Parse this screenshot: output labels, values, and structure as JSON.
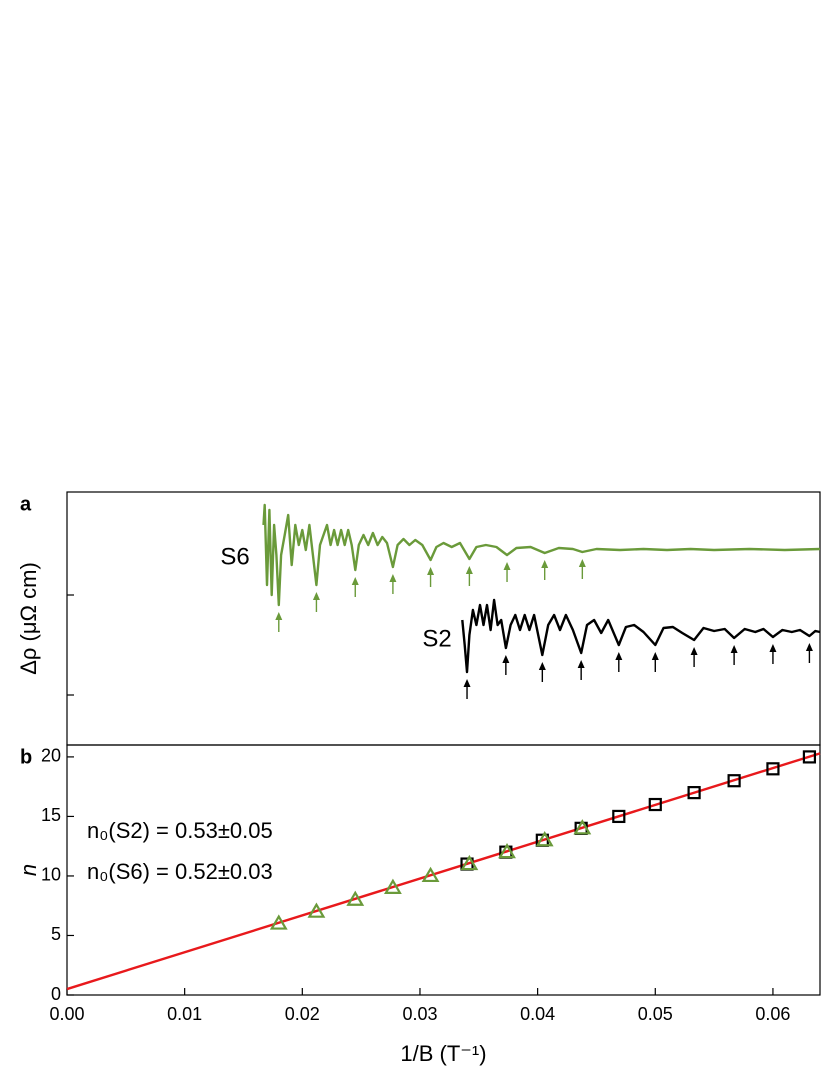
{
  "chart_data": [
    {
      "type": "line",
      "label": "a",
      "ylabel": "Δρ (μΩ cm)",
      "xlim": [
        0,
        0.064
      ],
      "ylim": [
        0,
        2.53
      ],
      "yticks": [
        0.5,
        1.5
      ],
      "tick_labels": false,
      "series": [
        {
          "name": "S6",
          "color": "#6a9a3a",
          "x": [
            0.0167,
            0.0168,
            0.017,
            0.0172,
            0.0174,
            0.0176,
            0.0178,
            0.018,
            0.0182,
            0.0185,
            0.0188,
            0.0191,
            0.0194,
            0.0197,
            0.02,
            0.0203,
            0.0206,
            0.0209,
            0.0212,
            0.0215,
            0.0218,
            0.0221,
            0.0224,
            0.0227,
            0.023,
            0.0233,
            0.0236,
            0.0239,
            0.0242,
            0.0245,
            0.0248,
            0.0252,
            0.0256,
            0.026,
            0.0264,
            0.0268,
            0.0272,
            0.0277,
            0.0281,
            0.0286,
            0.0291,
            0.0296,
            0.0302,
            0.0309,
            0.0314,
            0.032,
            0.0327,
            0.0334,
            0.0342,
            0.0348,
            0.0356,
            0.0365,
            0.0374,
            0.0382,
            0.0394,
            0.0406,
            0.0418,
            0.043,
            0.0438,
            0.045,
            0.047,
            0.049,
            0.051,
            0.053,
            0.055,
            0.058,
            0.061,
            0.064
          ],
          "values": [
            2.2,
            2.4,
            1.6,
            2.35,
            1.5,
            2.2,
            1.9,
            1.4,
            1.9,
            2.1,
            2.3,
            1.8,
            2.2,
            2.0,
            2.15,
            1.95,
            2.2,
            1.9,
            1.6,
            2.0,
            2.1,
            2.2,
            2.0,
            2.15,
            2.0,
            2.15,
            2.0,
            2.15,
            2.0,
            1.75,
            2.0,
            2.1,
            2.0,
            2.12,
            2.0,
            2.08,
            2.02,
            1.78,
            2.0,
            2.06,
            2.0,
            2.05,
            2.0,
            1.85,
            1.98,
            2.02,
            1.98,
            2.02,
            1.86,
            1.98,
            2.0,
            1.98,
            1.9,
            1.97,
            1.98,
            1.92,
            1.97,
            1.96,
            1.93,
            1.96,
            1.95,
            1.96,
            1.95,
            1.96,
            1.95,
            1.96,
            1.95,
            1.96
          ]
        },
        {
          "name": "S2",
          "color": "#000000",
          "x": [
            0.0336,
            0.0338,
            0.034,
            0.0342,
            0.0345,
            0.0348,
            0.0351,
            0.0354,
            0.0357,
            0.036,
            0.0363,
            0.0366,
            0.0369,
            0.0373,
            0.0377,
            0.0381,
            0.0385,
            0.0389,
            0.0393,
            0.0397,
            0.0404,
            0.0409,
            0.0414,
            0.0419,
            0.0424,
            0.043,
            0.0437,
            0.0442,
            0.0448,
            0.0454,
            0.046,
            0.0469,
            0.0475,
            0.0482,
            0.049,
            0.05,
            0.0507,
            0.0515,
            0.0523,
            0.0533,
            0.0541,
            0.055,
            0.0559,
            0.0567,
            0.0576,
            0.0585,
            0.0592,
            0.06,
            0.0608,
            0.0616,
            0.0623,
            0.0631,
            0.0636,
            0.064
          ],
          "values": [
            1.25,
            1.0,
            0.73,
            1.1,
            1.35,
            1.2,
            1.4,
            1.2,
            1.4,
            1.15,
            1.45,
            1.2,
            1.25,
            0.97,
            1.2,
            1.3,
            1.15,
            1.3,
            1.15,
            1.3,
            0.9,
            1.2,
            1.3,
            1.15,
            1.3,
            1.15,
            0.92,
            1.2,
            1.25,
            1.12,
            1.25,
            1.0,
            1.18,
            1.2,
            1.13,
            1.0,
            1.17,
            1.18,
            1.12,
            1.05,
            1.17,
            1.14,
            1.16,
            1.07,
            1.16,
            1.13,
            1.16,
            1.08,
            1.15,
            1.13,
            1.15,
            1.09,
            1.14,
            1.13
          ]
        }
      ]
    },
    {
      "type": "scatter",
      "label": "b",
      "ylabel": "n",
      "xlabel": "1/B (T⁻¹)",
      "xlim": [
        0,
        0.064
      ],
      "ylim": [
        0,
        21
      ],
      "xticks": [
        {
          "value": 0,
          "label": "0.00"
        },
        0.01,
        0.02,
        0.03,
        0.04,
        0.05,
        0.06
      ],
      "yticks": [
        0,
        5,
        10,
        15,
        20
      ],
      "annotations": [
        {
          "text": "n₀(S2) = 0.53±0.05",
          "color": "#000000"
        },
        {
          "text": "n₀(S6) = 0.52±0.03",
          "color": "#6a9a3a"
        }
      ],
      "series": [
        {
          "marker": "square",
          "color": "#000000",
          "x": [
            0.034,
            0.0373,
            0.0404,
            0.0437,
            0.0469,
            0.05,
            0.0533,
            0.0567,
            0.06,
            0.0631
          ],
          "values": [
            11,
            12,
            13,
            14,
            15,
            16,
            17,
            18,
            19,
            20
          ]
        },
        {
          "marker": "triangle",
          "color": "#6a9a3a",
          "x": [
            0.018,
            0.0212,
            0.0245,
            0.0277,
            0.0309,
            0.0342,
            0.0374,
            0.0406,
            0.0438
          ],
          "values": [
            6,
            7,
            8,
            9,
            10,
            11,
            12,
            13,
            14
          ]
        },
        {
          "marker": "line",
          "color": "#e8191c",
          "x": [
            0,
            0.064
          ],
          "values": [
            0.5,
            20.3
          ]
        }
      ]
    }
  ]
}
